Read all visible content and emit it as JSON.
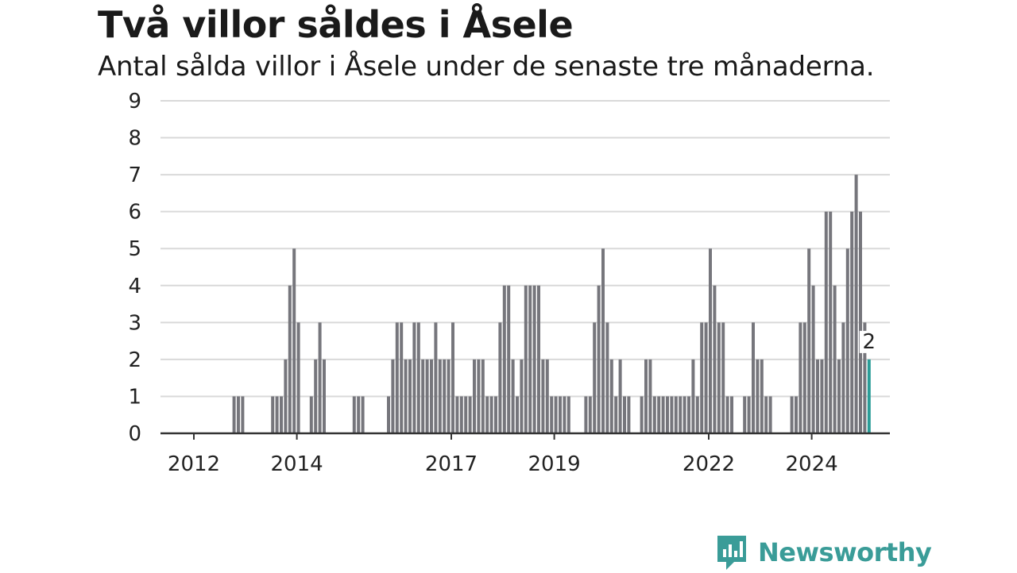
{
  "chart_data": {
    "type": "bar",
    "title": "Två villor såldes i Åsele",
    "subtitle": "Antal sålda villor i Åsele under de senaste tre månaderna.",
    "xlabel": "",
    "ylabel": "",
    "ylim": [
      0,
      9
    ],
    "yticks": [
      0,
      1,
      2,
      3,
      4,
      5,
      6,
      7,
      8,
      9
    ],
    "xticks": [
      {
        "label": "2012",
        "index": 0
      },
      {
        "label": "2014",
        "index": 24
      },
      {
        "label": "2017",
        "index": 60
      },
      {
        "label": "2019",
        "index": 84
      },
      {
        "label": "2022",
        "index": 120
      },
      {
        "label": "2024",
        "index": 144
      }
    ],
    "start": "2012-01",
    "frequency": "monthly",
    "grid": true,
    "highlight_color": "#2a9d98",
    "bar_color": "#76767c",
    "values": [
      0,
      0,
      0,
      0,
      0,
      0,
      0,
      0,
      0,
      1,
      1,
      1,
      0,
      0,
      0,
      0,
      0,
      0,
      1,
      1,
      1,
      2,
      4,
      5,
      3,
      0,
      0,
      1,
      2,
      3,
      2,
      0,
      0,
      0,
      0,
      0,
      0,
      1,
      1,
      1,
      0,
      0,
      0,
      0,
      0,
      1,
      2,
      3,
      3,
      2,
      2,
      3,
      3,
      2,
      2,
      2,
      3,
      2,
      2,
      2,
      3,
      1,
      1,
      1,
      1,
      2,
      2,
      2,
      1,
      1,
      1,
      3,
      4,
      4,
      2,
      1,
      2,
      4,
      4,
      4,
      4,
      2,
      2,
      1,
      1,
      1,
      1,
      1,
      0,
      0,
      0,
      1,
      1,
      3,
      4,
      5,
      3,
      2,
      1,
      2,
      1,
      1,
      0,
      0,
      1,
      2,
      2,
      1,
      1,
      1,
      1,
      1,
      1,
      1,
      1,
      1,
      2,
      1,
      3,
      3,
      5,
      4,
      3,
      3,
      1,
      1,
      0,
      0,
      1,
      1,
      3,
      2,
      2,
      1,
      1,
      0,
      0,
      0,
      0,
      1,
      1,
      3,
      3,
      5,
      4,
      2,
      2,
      6,
      6,
      4,
      2,
      3,
      5,
      6,
      7,
      6,
      3,
      2
    ],
    "last_value_label": "2"
  },
  "logo": {
    "text": "Newsworthy",
    "color": "#3a9c98"
  }
}
